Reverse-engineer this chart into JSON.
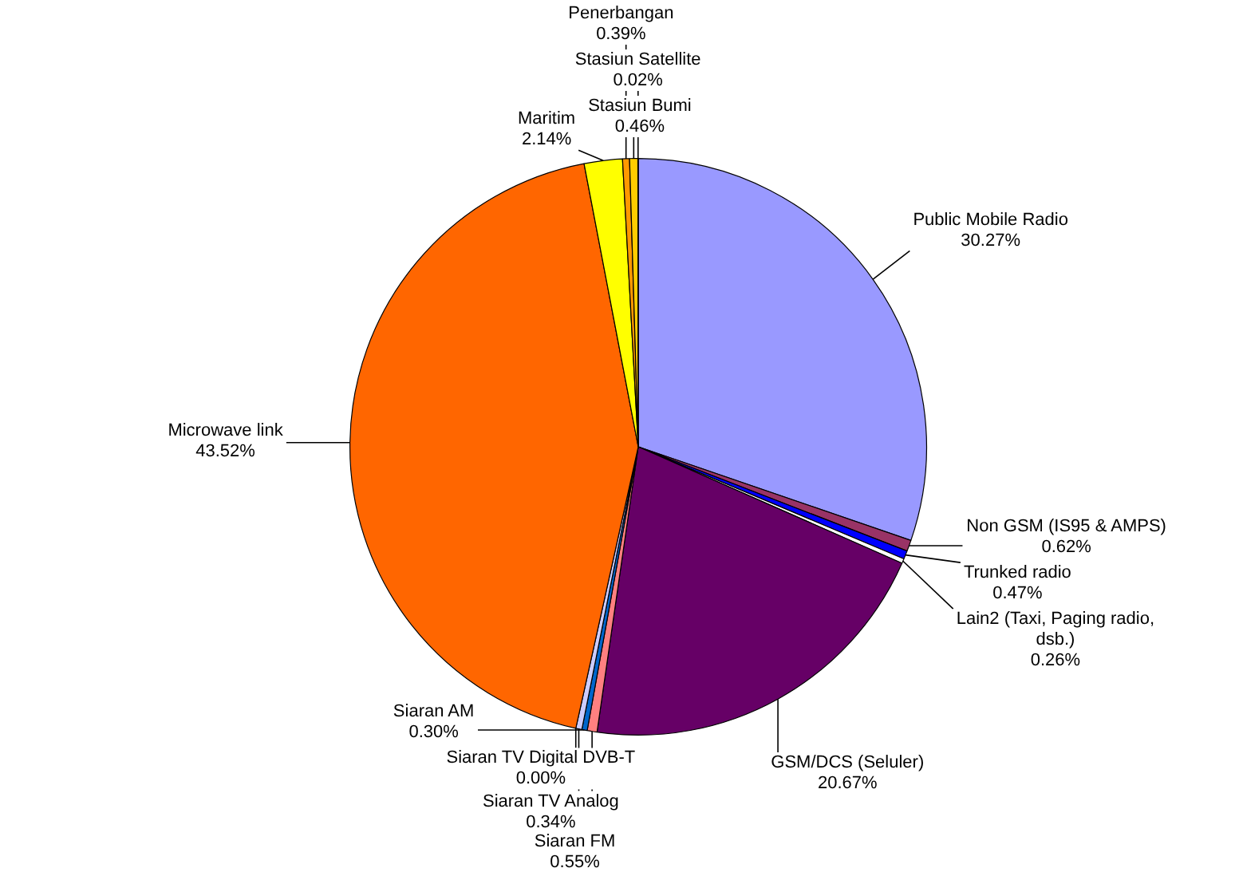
{
  "chart_data": {
    "type": "pie",
    "categories": [
      "Public Mobile Radio",
      "Non GSM (IS95 & AMPS)",
      "Trunked radio",
      "Lain2 (Taxi, Paging radio, dsb.)",
      "GSM/DCS (Seluler)",
      "Siaran FM",
      "Siaran AM",
      "Siaran TV Analog",
      "Siaran TV Digital DVB-T",
      "Microwave link",
      "Maritim",
      "Penerbangan",
      "Stasiun Bumi",
      "Stasiun Satellite"
    ],
    "values": [
      30.27,
      0.62,
      0.47,
      0.26,
      20.67,
      0.55,
      0.3,
      0.34,
      0.0,
      43.52,
      2.14,
      0.39,
      0.46,
      0.02
    ],
    "value_labels": [
      "30.27%",
      "0.62%",
      "0.47%",
      "0.26%",
      "20.67%",
      "0.55%",
      "0.30%",
      "0.34%",
      "0.00%",
      "43.52%",
      "2.14%",
      "0.39%",
      "0.46%",
      "0.02%"
    ],
    "colors": [
      "#9999ff",
      "#993366",
      "#0000ff",
      "#ffffff",
      "#660066",
      "#ff8080",
      "#0066cc",
      "#ccccff",
      "#00ccff",
      "#ff6600",
      "#ffff00",
      "#ff9900",
      "#ffcc00",
      "#000080"
    ]
  }
}
